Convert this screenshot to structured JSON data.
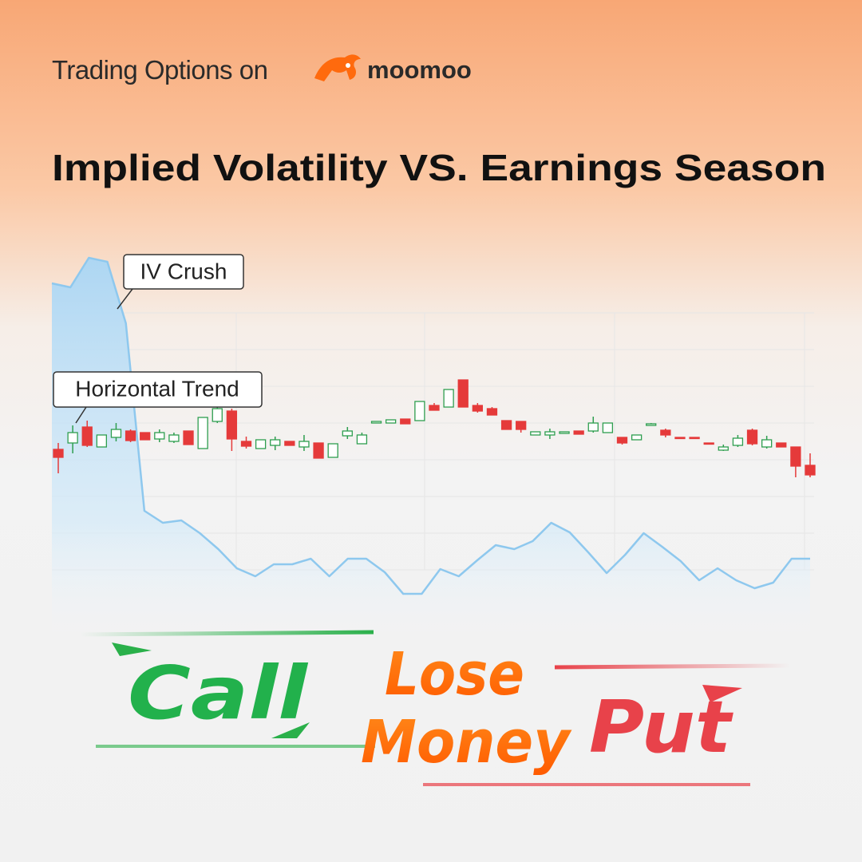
{
  "header": {
    "brand_prefix": "Trading Options on",
    "brand": "moomoo",
    "title": "Implied Volatility VS. Earnings Season"
  },
  "chart_data": {
    "type": "candlestick",
    "ylim": [
      0,
      500
    ],
    "up_color": "#2e9e4f",
    "down_color": "#e53a3a",
    "iv": {
      "color": "#8ec8ee",
      "values": [
        445,
        440,
        477,
        472,
        395,
        160,
        145,
        148,
        132,
        112,
        88,
        78,
        93,
        93,
        100,
        78,
        100,
        100,
        83,
        56,
        56,
        87,
        78,
        98,
        117,
        112,
        122,
        145,
        133,
        108,
        82,
        105,
        132,
        115,
        97,
        73,
        88,
        73,
        63,
        70,
        100,
        100
      ]
    },
    "ohlc": [
      [
        237,
        227,
        245,
        207
      ],
      [
        245,
        258,
        267,
        232
      ],
      [
        265,
        242,
        273,
        240
      ],
      [
        240,
        255,
        255,
        240
      ],
      [
        252,
        262,
        270,
        247
      ],
      [
        260,
        248,
        262,
        246
      ],
      [
        258,
        249,
        258,
        249
      ],
      [
        250,
        258,
        262,
        246
      ],
      [
        247,
        255,
        258,
        245
      ],
      [
        260,
        243,
        260,
        243
      ],
      [
        238,
        277,
        277,
        238
      ],
      [
        272,
        288,
        295,
        270
      ],
      [
        285,
        250,
        288,
        235
      ],
      [
        247,
        241,
        253,
        238
      ],
      [
        238,
        249,
        249,
        238
      ],
      [
        242,
        249,
        253,
        236
      ],
      [
        247,
        242,
        247,
        242
      ],
      [
        240,
        247,
        255,
        235
      ],
      [
        245,
        226,
        245,
        226
      ],
      [
        227,
        244,
        244,
        227
      ],
      [
        254,
        260,
        265,
        250
      ],
      [
        244,
        255,
        258,
        244
      ],
      [
        270,
        272,
        272,
        270
      ],
      [
        270,
        274,
        274,
        270
      ],
      [
        275,
        269,
        275,
        269
      ],
      [
        273,
        297,
        297,
        273
      ],
      [
        292,
        286,
        295,
        286
      ],
      [
        290,
        312,
        312,
        290
      ],
      [
        324,
        290,
        324,
        290
      ],
      [
        292,
        285,
        295,
        283
      ],
      [
        288,
        280,
        290,
        280
      ],
      [
        273,
        262,
        273,
        262
      ],
      [
        272,
        262,
        272,
        258
      ],
      [
        255,
        259,
        259,
        255
      ],
      [
        255,
        259,
        263,
        250
      ],
      [
        257,
        259,
        259,
        257
      ],
      [
        260,
        256,
        260,
        256
      ],
      [
        260,
        270,
        278,
        258
      ],
      [
        258,
        270,
        270,
        258
      ],
      [
        252,
        245,
        252,
        243
      ],
      [
        249,
        255,
        255,
        249
      ],
      [
        267,
        269,
        270,
        267
      ],
      [
        261,
        255,
        263,
        252
      ],
      [
        252,
        251,
        252,
        251
      ],
      [
        252,
        251,
        252,
        251
      ],
      [
        245,
        244,
        245,
        244
      ],
      [
        236,
        240,
        243,
        235
      ],
      [
        242,
        251,
        255,
        240
      ],
      [
        261,
        244,
        263,
        242
      ],
      [
        240,
        249,
        254,
        238
      ],
      [
        245,
        240,
        245,
        240
      ],
      [
        240,
        216,
        240,
        202
      ],
      [
        217,
        205,
        232,
        202
      ]
    ],
    "annotations": [
      "IV Crush",
      "Horizontal Trend"
    ]
  },
  "slogan": {
    "left": "Call",
    "middle_top": "Lose",
    "middle_bottom": "Money",
    "right": "Put"
  }
}
